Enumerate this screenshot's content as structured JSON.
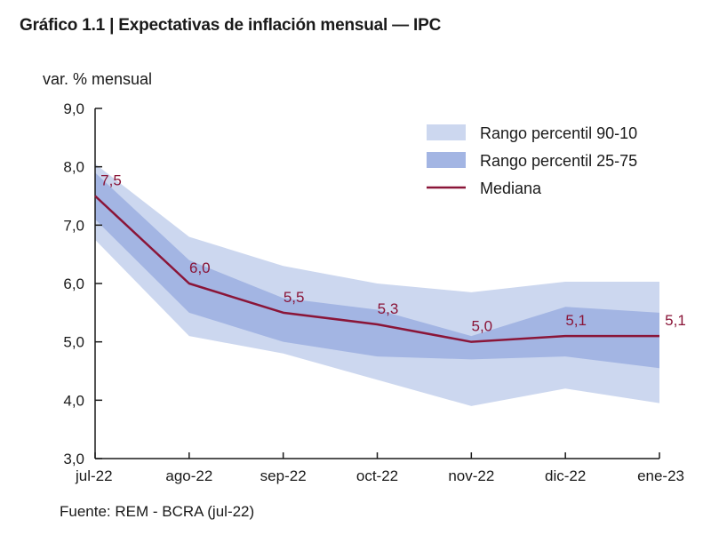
{
  "chart_data": {
    "type": "area",
    "title": "Gráfico 1.1 | Expectativas de inflación mensual — IPC",
    "ylabel": "var. % mensual",
    "xlabel": "",
    "source": "Fuente: REM - BCRA (jul-22)",
    "categories": [
      "jul-22",
      "ago-22",
      "sep-22",
      "oct-22",
      "nov-22",
      "dic-22",
      "ene-23"
    ],
    "ylim": [
      3.0,
      9.0
    ],
    "yticks": [
      3.0,
      4.0,
      5.0,
      6.0,
      7.0,
      8.0,
      9.0
    ],
    "ytick_labels": [
      "3,0",
      "4,0",
      "5,0",
      "6,0",
      "7,0",
      "8,0",
      "9,0"
    ],
    "series": [
      {
        "name": "Rango percentil 90-10",
        "kind": "band",
        "color": "#ccd7ef",
        "upper": [
          8.05,
          6.8,
          6.3,
          6.0,
          5.85,
          6.03,
          6.03
        ],
        "lower": [
          6.75,
          5.1,
          4.8,
          4.35,
          3.9,
          4.2,
          3.95
        ]
      },
      {
        "name": "Rango percentil 25-75",
        "kind": "band",
        "color": "#a3b5e3",
        "upper": [
          7.9,
          6.4,
          5.75,
          5.55,
          5.1,
          5.6,
          5.5
        ],
        "lower": [
          7.1,
          5.5,
          5.0,
          4.75,
          4.7,
          4.75,
          4.55
        ]
      },
      {
        "name": "Mediana",
        "kind": "line",
        "color": "#8a1538",
        "values": [
          7.5,
          6.0,
          5.5,
          5.3,
          5.0,
          5.1,
          5.1
        ],
        "labels": [
          "7,5",
          "6,0",
          "5,5",
          "5,3",
          "5,0",
          "5,1",
          "5,1"
        ]
      }
    ],
    "legend_position": "top-right"
  }
}
